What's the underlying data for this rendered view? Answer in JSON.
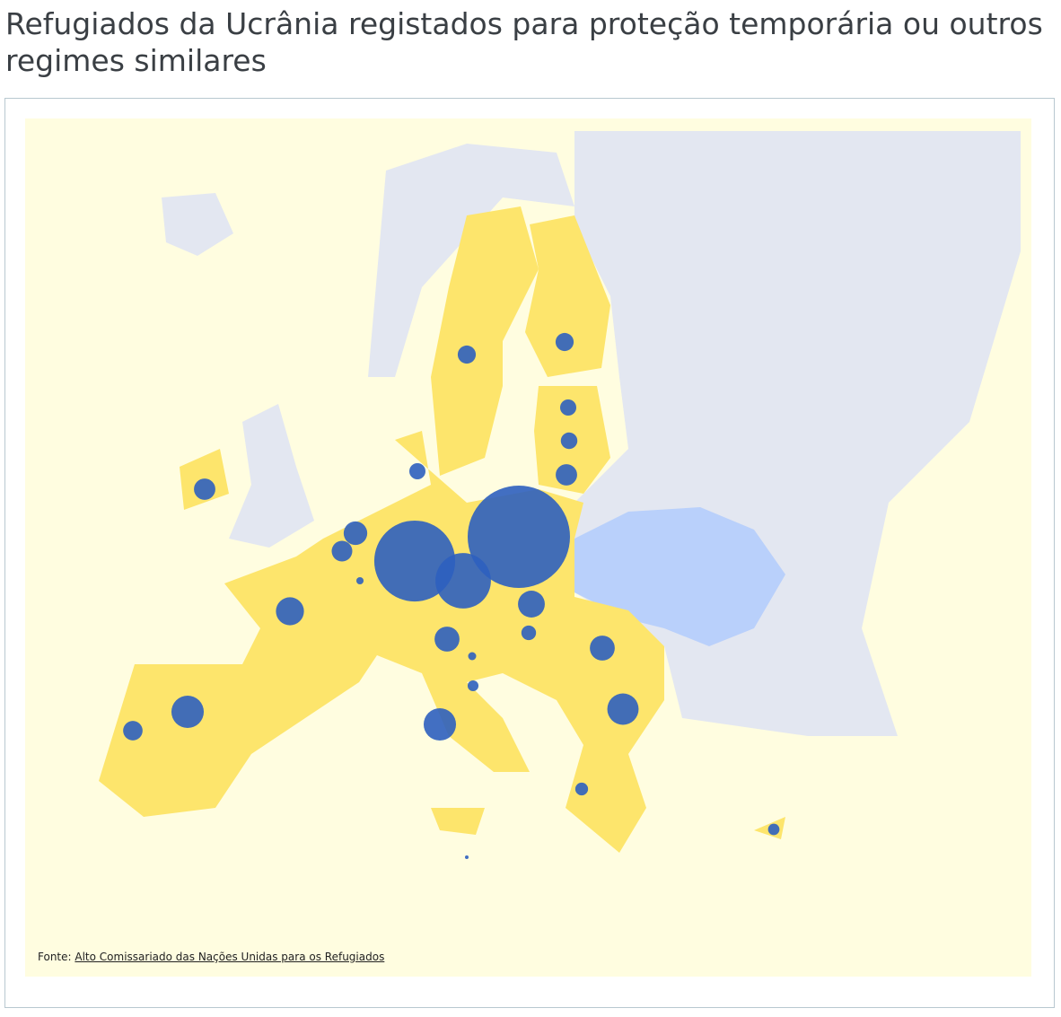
{
  "title": "Refugiados da Ucrânia registados para proteção temporária ou outros regimes similares",
  "source_label": "Fonte:",
  "source_link": "Alto Comissariado das Nações Unidas para os Refugiados",
  "bubble_color": "#2d5fbf",
  "values": [
    1600000,
    1000000,
    470000,
    160000,
    160000,
    150000,
    120000,
    110000,
    95000,
    95000,
    85000,
    70000,
    70000,
    65000,
    58000,
    50000,
    50000,
    40000,
    42000,
    40000,
    33000,
    25000,
    20000,
    18000,
    10000,
    8000,
    2000
  ]
}
